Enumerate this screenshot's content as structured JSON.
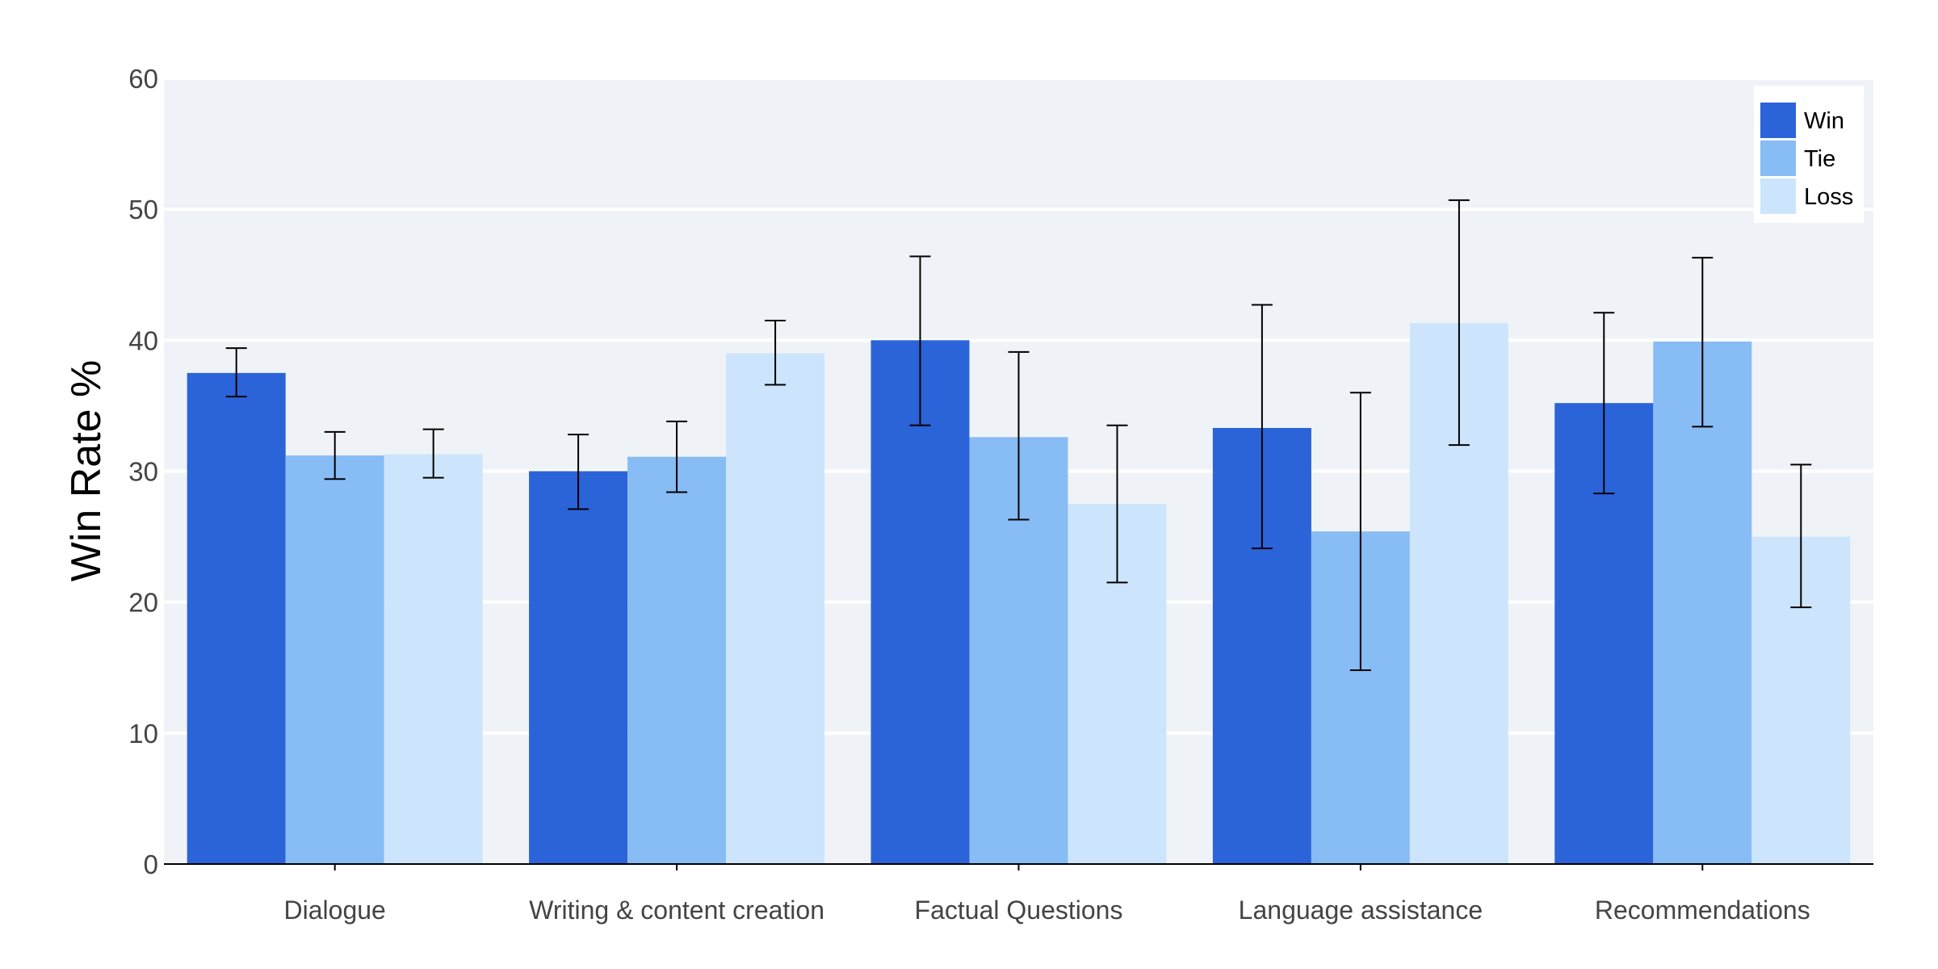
{
  "chart_data": {
    "type": "bar",
    "title": "",
    "xlabel": "",
    "ylabel": "Win Rate %",
    "ylim": [
      0,
      60
    ],
    "yticks": [
      0,
      10,
      20,
      30,
      40,
      50,
      60
    ],
    "grid": true,
    "legend_position": "top-right",
    "categories": [
      "Dialogue",
      "Writing & content creation",
      "Factual Questions",
      "Language assistance",
      "Recommendations"
    ],
    "series": [
      {
        "name": "Win",
        "color": "#2b63d9",
        "values": [
          37.5,
          30.0,
          40.0,
          33.3,
          35.2
        ],
        "err_low": [
          35.7,
          27.1,
          33.5,
          24.1,
          28.3
        ],
        "err_high": [
          39.4,
          32.8,
          46.4,
          42.7,
          42.1
        ]
      },
      {
        "name": "Tie",
        "color": "#87bcf5",
        "values": [
          31.2,
          31.1,
          32.6,
          25.4,
          39.9
        ],
        "err_low": [
          29.4,
          28.4,
          26.3,
          14.8,
          33.4
        ],
        "err_high": [
          33.0,
          33.8,
          39.1,
          36.0,
          46.3
        ]
      },
      {
        "name": "Loss",
        "color": "#cde5fc",
        "values": [
          31.3,
          39.0,
          27.5,
          41.3,
          25.0
        ],
        "err_low": [
          29.5,
          36.6,
          21.5,
          32.0,
          19.6
        ],
        "err_high": [
          33.2,
          41.5,
          33.5,
          50.7,
          30.5
        ]
      }
    ]
  },
  "colors": {
    "plot_background": "#eff3f7",
    "gridline": "#ffffff",
    "axis_line": "#000000",
    "error_bar": "#000000"
  }
}
